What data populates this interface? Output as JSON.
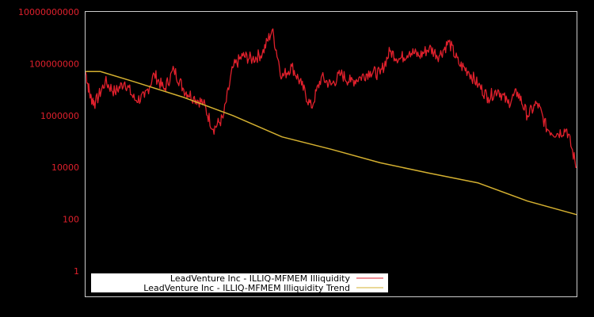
{
  "chart_data": {
    "type": "line",
    "title": "",
    "xlabel": "",
    "ylabel": "",
    "yscale": "log",
    "ylim": [
      0.5,
      10000000000
    ],
    "y_ticks": [
      "10000000000",
      "100000000",
      "1000000",
      "10000",
      "100",
      "1"
    ],
    "grid": false,
    "legend_position": "bottom-left",
    "background": "#000000",
    "frame_color": "#cccccc",
    "series": [
      {
        "name": "LeadVenture Inc - ILLIQ-MFMEM Illiquidity",
        "color": "#e0202c",
        "x": [
          0,
          0.01,
          0.02,
          0.04,
          0.06,
          0.08,
          0.1,
          0.12,
          0.14,
          0.16,
          0.18,
          0.2,
          0.22,
          0.24,
          0.26,
          0.28,
          0.3,
          0.32,
          0.34,
          0.36,
          0.38,
          0.4,
          0.42,
          0.44,
          0.46,
          0.48,
          0.5,
          0.52,
          0.54,
          0.56,
          0.58,
          0.6,
          0.62,
          0.64,
          0.66,
          0.68,
          0.7,
          0.72,
          0.74,
          0.76,
          0.78,
          0.8,
          0.82,
          0.84,
          0.86,
          0.88,
          0.9,
          0.92,
          0.94,
          0.96,
          0.98,
          1.0
        ],
        "values": [
          50000000,
          5000000,
          3000000,
          20000000,
          8000000,
          20000000,
          4000000,
          5000000,
          40000000,
          10000000,
          60000000,
          10000000,
          5000000,
          3000000,
          300000,
          800000,
          70000000,
          200000000,
          150000000,
          250000000,
          2000000000,
          30000000,
          80000000,
          15000000,
          2000000,
          30000000,
          15000000,
          40000000,
          20000000,
          30000000,
          50000000,
          40000000,
          300000000,
          150000000,
          300000000,
          200000000,
          400000000,
          200000000,
          700000000,
          100000000,
          50000000,
          15000000,
          5000000,
          10000000,
          3000000,
          8000000,
          1000000,
          3000000,
          300000,
          200000,
          300000,
          10000
        ]
      },
      {
        "name": "LeadVenture Inc - ILLIQ-MFMEM Illiquidity Trend",
        "color": "#d4b030",
        "x": [
          0,
          0.03,
          0.1,
          0.2,
          0.3,
          0.4,
          0.5,
          0.6,
          0.7,
          0.8,
          0.9,
          1.0
        ],
        "values": [
          50000000,
          50000000,
          20000000,
          5000000,
          1000000,
          150000,
          50000,
          15000,
          6000,
          2500,
          500,
          150
        ]
      }
    ]
  },
  "legend": {
    "items": [
      {
        "label": "LeadVenture Inc - ILLIQ-MFMEM Illiquidity",
        "color": "#e0202c"
      },
      {
        "label": "LeadVenture Inc - ILLIQ-MFMEM Illiquidity Trend",
        "color": "#d4b030"
      }
    ]
  }
}
